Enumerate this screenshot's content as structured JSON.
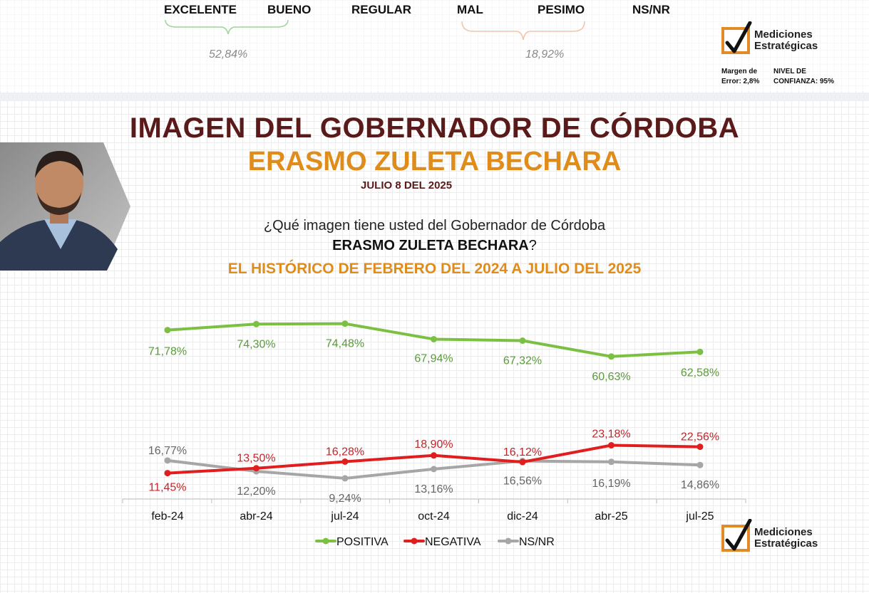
{
  "header": {
    "ratings": [
      "EXCELENTE",
      "BUENO",
      "REGULAR",
      "MAL",
      "PESIMO",
      "NS/NR"
    ],
    "positive_pct": "52,84%",
    "negative_pct": "18,92%",
    "positive_color": "#9fd39a",
    "negative_color": "#f2c4a8"
  },
  "brand": {
    "name_line1": "Mediciones",
    "name_line2": "Estratégicas",
    "accent": "#e08a2a",
    "margin_line1": "Margen de",
    "margin_line2": "Error: 2,8%",
    "conf_line1": "NIVEL DE",
    "conf_line2": "CONFIANZA: 95%"
  },
  "title": {
    "line1": "IMAGEN DEL GOBERNADOR DE CÓRDOBA",
    "line2": "ERASMO ZULETA BECHARA",
    "date": "JULIO 8 DEL 2025"
  },
  "question": {
    "line1": "¿Qué imagen tiene usted del Gobernador de Córdoba",
    "name": "ERASMO ZULETA BECHARA",
    "qmark": "?",
    "line3": "EL HISTÓRICO DE FEBRERO DEL 2024 A JULIO DEL 2025"
  },
  "chart_data": {
    "type": "line",
    "categories": [
      "feb-24",
      "abr-24",
      "jul-24",
      "oct-24",
      "dic-24",
      "abr-25",
      "jul-25"
    ],
    "series": [
      {
        "name": "POSITIVA",
        "color": "#7cc043",
        "values": [
          71.78,
          74.3,
          74.48,
          67.94,
          67.32,
          60.63,
          62.58
        ],
        "labels": [
          "71,78%",
          "74,30%",
          "74,48%",
          "67,94%",
          "67,32%",
          "60,63%",
          "62,58%"
        ]
      },
      {
        "name": "NEGATIVA",
        "color": "#e01e1e",
        "values": [
          11.45,
          13.5,
          16.28,
          18.9,
          16.12,
          23.18,
          22.56
        ],
        "labels": [
          "11,45%",
          "13,50%",
          "16,28%",
          "18,90%",
          "16,12%",
          "23,18%",
          "22,56%"
        ]
      },
      {
        "name": "NS/NR",
        "color": "#a6a6a6",
        "values": [
          16.77,
          12.2,
          9.24,
          13.16,
          16.56,
          16.19,
          14.86
        ],
        "labels": [
          "16,77%",
          "12,20%",
          "9,24%",
          "13,16%",
          "16,56%",
          "16,19%",
          "14,86%"
        ]
      }
    ],
    "label_colors": {
      "POSITIVA": "#5a9a3a",
      "NEGATIVA": "#c0262b",
      "NS/NR": "#666666"
    },
    "legend_position": "bottom",
    "grid": false
  }
}
